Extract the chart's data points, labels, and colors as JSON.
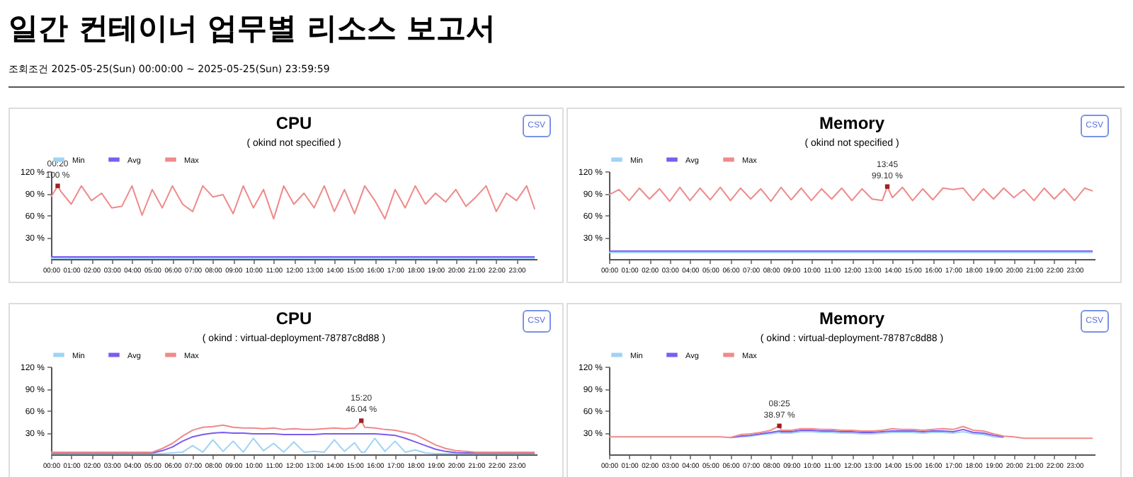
{
  "chart_data": [
    {
      "type": "line",
      "title": "CPU",
      "subtitle": "( okind not specified )",
      "legend": "top left",
      "xlim": [
        0,
        24
      ],
      "ylim": [
        0,
        120
      ],
      "xticks": [
        {
          "value": 0,
          "label": "00:00"
        },
        {
          "value": 1,
          "label": "01:00"
        },
        {
          "value": 2,
          "label": "02:00"
        },
        {
          "value": 3,
          "label": "03:00"
        },
        {
          "value": 4,
          "label": "04:00"
        },
        {
          "value": 5,
          "label": "05:00"
        },
        {
          "value": 6,
          "label": "06:00"
        },
        {
          "value": 7,
          "label": "07:00"
        },
        {
          "value": 8,
          "label": "08:00"
        },
        {
          "value": 9,
          "label": "09:00"
        },
        {
          "value": 10,
          "label": "10:00"
        },
        {
          "value": 11,
          "label": "11:00"
        },
        {
          "value": 12,
          "label": "12:00"
        },
        {
          "value": 13,
          "label": "13:00"
        },
        {
          "value": 14,
          "label": "14:00"
        },
        {
          "value": 15,
          "label": "15:00"
        },
        {
          "value": 16,
          "label": "16:00"
        },
        {
          "value": 17,
          "label": "17:00"
        },
        {
          "value": 18,
          "label": "18:00"
        },
        {
          "value": 19,
          "label": "19:00"
        },
        {
          "value": 20,
          "label": "20:00"
        },
        {
          "value": 21,
          "label": "21:00"
        },
        {
          "value": 22,
          "label": "22:00"
        },
        {
          "value": 23,
          "label": "23:00"
        }
      ],
      "yticks": [
        {
          "value": 30,
          "label": "30 %"
        },
        {
          "value": 60,
          "label": "60 %"
        },
        {
          "value": 90,
          "label": "90 %"
        },
        {
          "value": 120,
          "label": "120 %"
        }
      ],
      "annotations": [
        "일간 컨테이너 업무별 리소스 보고서",
        "조회조건 2025-05-25(Sun) 00:00:00 ~ 2025-05-25(Sun) 23:59:59",
        "CSV",
        {
          "text": "00:20\n100 %",
          "x": 0.333,
          "y": 100
        }
      ],
      "series": [
        {
          "name": "Min",
          "color": "#9fd3f7",
          "x": [
            0,
            23.9
          ],
          "values": [
            1,
            1
          ]
        },
        {
          "name": "Avg",
          "color": "#7b5cf0",
          "x": [
            0,
            23.9
          ],
          "values": [
            3,
            3
          ]
        },
        {
          "name": "Max",
          "color": "#ef8a8a",
          "x": [
            0,
            0.333,
            0.5,
            1,
            1.5,
            2,
            2.5,
            3,
            3.5,
            4,
            4.5,
            5,
            5.5,
            6,
            6.5,
            7,
            7.5,
            8,
            8.5,
            9,
            9.5,
            10,
            10.5,
            11,
            11.5,
            12,
            12.5,
            13,
            13.5,
            14,
            14.5,
            15,
            15.5,
            16,
            16.5,
            17,
            17.5,
            18,
            18.5,
            19,
            19.5,
            20,
            20.5,
            21,
            21.5,
            22,
            22.5,
            23,
            23.5,
            23.9
          ],
          "values": [
            85,
            100,
            92,
            75,
            100,
            80,
            90,
            70,
            72,
            100,
            60,
            95,
            70,
            100,
            75,
            65,
            100,
            85,
            88,
            62,
            100,
            70,
            95,
            55,
            100,
            75,
            90,
            70,
            100,
            65,
            95,
            62,
            100,
            80,
            55,
            95,
            70,
            100,
            75,
            90,
            78,
            95,
            72,
            85,
            100,
            65,
            90,
            80,
            100,
            68
          ]
        }
      ]
    },
    {
      "type": "line",
      "title": "Memory",
      "subtitle": "( okind not specified )",
      "legend": "top left",
      "xlim": [
        0,
        24
      ],
      "ylim": [
        0,
        120
      ],
      "xticks": [
        {
          "value": 0,
          "label": "00:00"
        },
        {
          "value": 1,
          "label": "01:00"
        },
        {
          "value": 2,
          "label": "02:00"
        },
        {
          "value": 3,
          "label": "03:00"
        },
        {
          "value": 4,
          "label": "04:00"
        },
        {
          "value": 5,
          "label": "05:00"
        },
        {
          "value": 6,
          "label": "06:00"
        },
        {
          "value": 7,
          "label": "07:00"
        },
        {
          "value": 8,
          "label": "08:00"
        },
        {
          "value": 9,
          "label": "09:00"
        },
        {
          "value": 10,
          "label": "10:00"
        },
        {
          "value": 11,
          "label": "11:00"
        },
        {
          "value": 12,
          "label": "12:00"
        },
        {
          "value": 13,
          "label": "13:00"
        },
        {
          "value": 14,
          "label": "14:00"
        },
        {
          "value": 15,
          "label": "15:00"
        },
        {
          "value": 16,
          "label": "16:00"
        },
        {
          "value": 17,
          "label": "17:00"
        },
        {
          "value": 18,
          "label": "18:00"
        },
        {
          "value": 19,
          "label": "19:00"
        },
        {
          "value": 20,
          "label": "20:00"
        },
        {
          "value": 21,
          "label": "21:00"
        },
        {
          "value": 22,
          "label": "22:00"
        },
        {
          "value": 23,
          "label": "23:00"
        }
      ],
      "yticks": [
        {
          "value": 30,
          "label": "30 %"
        },
        {
          "value": 60,
          "label": "60 %"
        },
        {
          "value": 90,
          "label": "90 %"
        },
        {
          "value": 120,
          "label": "120 %"
        }
      ],
      "annotations": [
        "CSV",
        {
          "text": "13:45\n99.10 %",
          "x": 13.75,
          "y": 99.1
        }
      ],
      "series": [
        {
          "name": "Min",
          "color": "#9fd3f7",
          "x": [
            0,
            23.9
          ],
          "values": [
            9,
            9
          ]
        },
        {
          "name": "Avg",
          "color": "#7b5cf0",
          "x": [
            0,
            23.9
          ],
          "values": [
            11,
            11
          ]
        },
        {
          "name": "Max",
          "color": "#ef8a8a",
          "x": [
            0,
            0.5,
            1,
            1.5,
            2,
            2.5,
            3,
            3.5,
            4,
            4.5,
            5,
            5.5,
            6,
            6.5,
            7,
            7.5,
            8,
            8.5,
            9,
            9.5,
            10,
            10.5,
            11,
            11.5,
            12,
            12.5,
            13,
            13.5,
            13.75,
            14,
            14.5,
            15,
            15.5,
            16,
            16.5,
            17,
            17.5,
            18,
            18.5,
            19,
            19.5,
            20,
            20.5,
            21,
            21.5,
            22,
            22.5,
            23,
            23.5,
            23.9
          ],
          "values": [
            88,
            95,
            80,
            97,
            82,
            96,
            79,
            98,
            80,
            97,
            81,
            98,
            80,
            97,
            82,
            96,
            79,
            98,
            81,
            97,
            80,
            96,
            82,
            97,
            80,
            96,
            82,
            80,
            99.1,
            84,
            98,
            80,
            96,
            81,
            97,
            95,
            97,
            80,
            96,
            82,
            97,
            84,
            95,
            80,
            97,
            82,
            96,
            80,
            97,
            93
          ]
        }
      ]
    },
    {
      "type": "line",
      "title": "CPU",
      "subtitle": "( okind : virtual-deployment-78787c8d88 )",
      "legend": "top left",
      "xlim": [
        0,
        24
      ],
      "ylim": [
        0,
        120
      ],
      "xticks": [
        {
          "value": 0,
          "label": "00:00"
        },
        {
          "value": 1,
          "label": "01:00"
        },
        {
          "value": 2,
          "label": "02:00"
        },
        {
          "value": 3,
          "label": "03:00"
        },
        {
          "value": 4,
          "label": "04:00"
        },
        {
          "value": 5,
          "label": "05:00"
        },
        {
          "value": 6,
          "label": "06:00"
        },
        {
          "value": 7,
          "label": "07:00"
        },
        {
          "value": 8,
          "label": "08:00"
        },
        {
          "value": 9,
          "label": "09:00"
        },
        {
          "value": 10,
          "label": "10:00"
        },
        {
          "value": 11,
          "label": "11:00"
        },
        {
          "value": 12,
          "label": "12:00"
        },
        {
          "value": 13,
          "label": "13:00"
        },
        {
          "value": 14,
          "label": "14:00"
        },
        {
          "value": 15,
          "label": "15:00"
        },
        {
          "value": 16,
          "label": "16:00"
        },
        {
          "value": 17,
          "label": "17:00"
        },
        {
          "value": 18,
          "label": "18:00"
        },
        {
          "value": 19,
          "label": "19:00"
        },
        {
          "value": 20,
          "label": "20:00"
        },
        {
          "value": 21,
          "label": "21:00"
        },
        {
          "value": 22,
          "label": "22:00"
        },
        {
          "value": 23,
          "label": "23:00"
        }
      ],
      "yticks": [
        {
          "value": 30,
          "label": "30 %"
        },
        {
          "value": 60,
          "label": "60 %"
        },
        {
          "value": 90,
          "label": "90 %"
        },
        {
          "value": 120,
          "label": "120 %"
        }
      ],
      "annotations": [
        "CSV",
        {
          "text": "15:20\n46.04 %",
          "x": 15.333,
          "y": 46.04
        }
      ],
      "x": [
        0,
        0.5,
        1,
        1.5,
        2,
        2.5,
        3,
        3.5,
        4,
        4.5,
        5,
        5.5,
        6,
        6.5,
        7,
        7.5,
        8,
        8.5,
        9,
        9.5,
        10,
        10.5,
        11,
        11.5,
        12,
        12.5,
        13,
        13.5,
        14,
        14.5,
        15,
        15.333,
        15.5,
        16,
        16.5,
        17,
        17.5,
        18,
        18.5,
        19,
        19.5,
        20,
        20.5,
        21,
        21.5,
        22,
        22.5,
        23,
        23.5,
        23.9
      ],
      "series": [
        {
          "name": "Min",
          "color": "#9fd3f7",
          "values": [
            1,
            1,
            1,
            1,
            1,
            1,
            1,
            1,
            1,
            1,
            1,
            1,
            2,
            3,
            12,
            3,
            20,
            4,
            18,
            3,
            22,
            5,
            15,
            3,
            17,
            3,
            4,
            3,
            20,
            4,
            16,
            3,
            3,
            22,
            4,
            18,
            3,
            6,
            2,
            1,
            1,
            1,
            1,
            1,
            1,
            1,
            1,
            1,
            1,
            1
          ]
        },
        {
          "name": "Avg",
          "color": "#7b5cf0",
          "values": [
            2,
            2,
            2,
            2,
            2,
            2,
            2,
            2,
            2,
            2,
            2,
            5,
            10,
            18,
            24,
            27,
            29,
            30,
            29,
            29,
            28,
            28,
            28,
            27,
            27,
            27,
            27,
            28,
            28,
            28,
            28,
            28,
            28,
            28,
            27,
            26,
            22,
            17,
            12,
            7,
            4,
            2.5,
            2,
            2,
            2,
            2,
            2,
            2,
            2,
            2
          ]
        },
        {
          "name": "Max",
          "color": "#ef8a8a",
          "values": [
            3,
            3,
            3,
            3,
            3,
            3,
            3,
            3,
            3,
            3,
            3,
            8,
            15,
            25,
            33,
            37,
            38,
            40,
            37,
            36,
            36,
            35,
            36,
            34,
            35,
            34,
            34,
            35,
            36,
            35,
            36,
            46.04,
            37,
            36,
            34,
            33,
            30,
            27,
            20,
            13,
            8,
            5,
            4,
            3,
            3,
            3,
            3,
            3,
            3,
            3
          ]
        }
      ]
    },
    {
      "type": "line",
      "title": "Memory",
      "subtitle": "( okind : virtual-deployment-78787c8d88 )",
      "legend": "top left",
      "xlim": [
        0,
        24
      ],
      "ylim": [
        0,
        120
      ],
      "xticks": [
        {
          "value": 0,
          "label": "00:00"
        },
        {
          "value": 1,
          "label": "01:00"
        },
        {
          "value": 2,
          "label": "02:00"
        },
        {
          "value": 3,
          "label": "03:00"
        },
        {
          "value": 4,
          "label": "04:00"
        },
        {
          "value": 5,
          "label": "05:00"
        },
        {
          "value": 6,
          "label": "06:00"
        },
        {
          "value": 7,
          "label": "07:00"
        },
        {
          "value": 8,
          "label": "08:00"
        },
        {
          "value": 9,
          "label": "09:00"
        },
        {
          "value": 10,
          "label": "10:00"
        },
        {
          "value": 11,
          "label": "11:00"
        },
        {
          "value": 12,
          "label": "12:00"
        },
        {
          "value": 13,
          "label": "13:00"
        },
        {
          "value": 14,
          "label": "14:00"
        },
        {
          "value": 15,
          "label": "15:00"
        },
        {
          "value": 16,
          "label": "16:00"
        },
        {
          "value": 17,
          "label": "17:00"
        },
        {
          "value": 18,
          "label": "18:00"
        },
        {
          "value": 19,
          "label": "19:00"
        },
        {
          "value": 20,
          "label": "20:00"
        },
        {
          "value": 21,
          "label": "21:00"
        },
        {
          "value": 22,
          "label": "22:00"
        },
        {
          "value": 23,
          "label": "23:00"
        }
      ],
      "yticks": [
        {
          "value": 30,
          "label": "30 %"
        },
        {
          "value": 60,
          "label": "60 %"
        },
        {
          "value": 90,
          "label": "90 %"
        },
        {
          "value": 120,
          "label": "120 %"
        }
      ],
      "annotations": [
        "CSV",
        {
          "text": "08:25\n38.97 %",
          "x": 8.417,
          "y": 38.97
        }
      ],
      "x": [
        0,
        0.5,
        1,
        1.5,
        2,
        2.5,
        3,
        3.5,
        4,
        4.5,
        5,
        5.5,
        6,
        6.5,
        7,
        7.5,
        8,
        8.417,
        8.5,
        9,
        9.5,
        10,
        10.5,
        11,
        11.5,
        12,
        12.5,
        13,
        13.5,
        14,
        14.5,
        15,
        15.5,
        16,
        16.5,
        17,
        17.5,
        18,
        18.5,
        19,
        19.5,
        20,
        20.5,
        21,
        21.5,
        22,
        22.5,
        23,
        23.5,
        23.9
      ],
      "series": [
        {
          "name": "Min",
          "color": "#9fd3f7",
          "values": [
            null,
            null,
            null,
            null,
            null,
            null,
            null,
            null,
            null,
            null,
            null,
            null,
            23,
            24,
            25,
            27,
            28,
            30,
            29,
            29,
            31,
            31,
            30,
            30,
            29,
            29,
            28,
            28,
            29,
            30,
            30,
            30,
            29,
            30,
            30,
            29,
            31,
            28,
            27,
            24,
            23,
            null,
            null,
            null,
            null,
            null,
            null,
            null,
            null,
            null
          ]
        },
        {
          "name": "Avg",
          "color": "#7b5cf0",
          "values": [
            null,
            null,
            null,
            null,
            null,
            null,
            null,
            null,
            null,
            null,
            null,
            null,
            23,
            25,
            26,
            28,
            30,
            32,
            31,
            31,
            33,
            33,
            32,
            32,
            31,
            31,
            30,
            30,
            31,
            32,
            32,
            32,
            31,
            32,
            32,
            31,
            34,
            30,
            29,
            26,
            24,
            null,
            null,
            null,
            null,
            null,
            null,
            null,
            null,
            null
          ]
        },
        {
          "name": "Max",
          "color": "#ef8a8a",
          "values": [
            24,
            24,
            24,
            24,
            24,
            24,
            24,
            24,
            24,
            24,
            24,
            24,
            23,
            27,
            28,
            30,
            33,
            38.97,
            33,
            33,
            35,
            35,
            34,
            34,
            33,
            33,
            32,
            32,
            33,
            35,
            34,
            34,
            33,
            34,
            35,
            34,
            38,
            33,
            32,
            28,
            25,
            24,
            22,
            22,
            22,
            22,
            22,
            22,
            22,
            22
          ]
        }
      ]
    }
  ]
}
